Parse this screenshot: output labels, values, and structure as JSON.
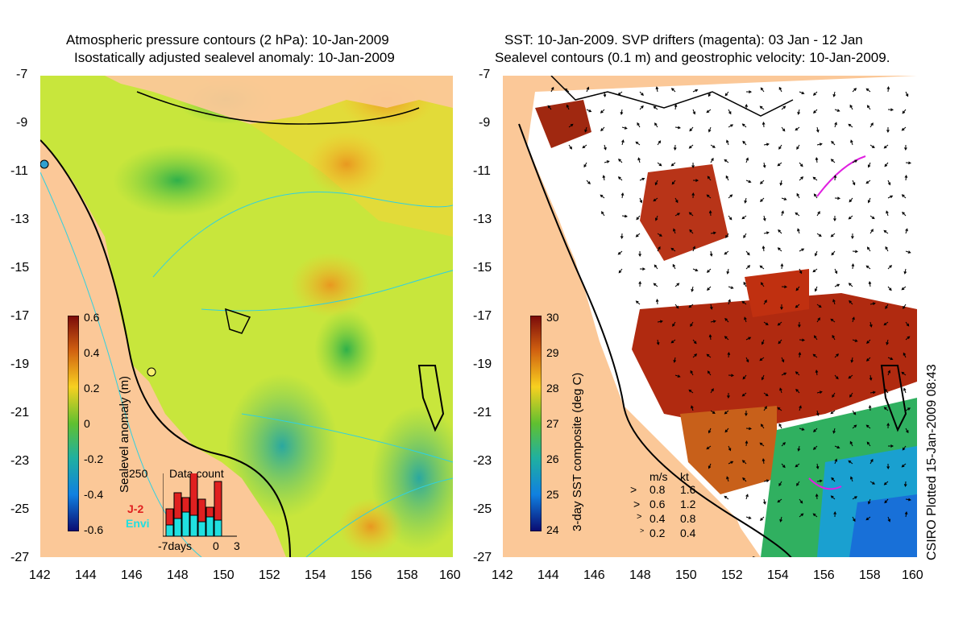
{
  "left_panel": {
    "title_line1": "Atmospheric pressure contours (2 hPa): 10-Jan-2009",
    "title_line2": "Isostatically adjusted sealevel anomaly: 10-Jan-2009",
    "colorbar_title": "Sealevel anomaly (m)",
    "colorbar_ticks": [
      "0.6",
      "0.4",
      "0.2",
      "0",
      "-0.2",
      "-0.4",
      "-0.6"
    ],
    "inset": {
      "title": "Data count",
      "ymax_label": "250",
      "series1": "J-2",
      "series2": "Envi",
      "x_labels": [
        "-7days",
        "0",
        "3"
      ]
    }
  },
  "right_panel": {
    "title_line1": "SST: 10-Jan-2009. SVP drifters (magenta): 03 Jan - 12 Jan",
    "title_line2": "Sealevel contours (0.1 m) and geostrophic velocity: 10-Jan-2009.",
    "colorbar_title": "3-day SST composite (deg C)",
    "colorbar_ticks": [
      "30",
      "29",
      "28",
      "27",
      "26",
      "25",
      "24"
    ],
    "speed_legend": {
      "header_ms": "m/s",
      "header_kt": "kt",
      "rows": [
        {
          "ms": "0.8",
          "kt": "1.6"
        },
        {
          "ms": "0.6",
          "kt": "1.2"
        },
        {
          "ms": "0.4",
          "kt": "0.8"
        },
        {
          "ms": "0.2",
          "kt": "0.4"
        }
      ]
    }
  },
  "axes": {
    "lat_ticks": [
      "-7",
      "-9",
      "-11",
      "-13",
      "-15",
      "-17",
      "-19",
      "-21",
      "-23",
      "-25",
      "-27"
    ],
    "lon_ticks": [
      "142",
      "144",
      "146",
      "148",
      "150",
      "152",
      "154",
      "156",
      "158",
      "160"
    ]
  },
  "credit": "CSIRO Plotted 15-Jan-2009 08:43",
  "colors": {
    "land": "#fbc898",
    "ocean_mid": "#c8e63c",
    "warm_sst": "#b02a10",
    "drifters": "#e020e0",
    "contours": "#30d0e0"
  }
}
